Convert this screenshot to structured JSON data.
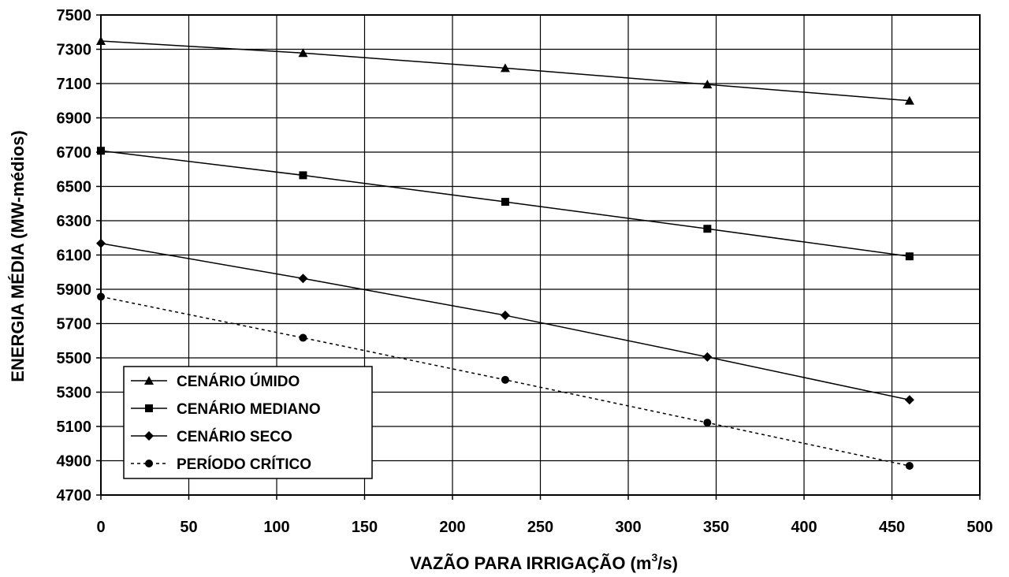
{
  "chart_data": {
    "type": "line",
    "xlabel": "VAZÃO PARA IRRIGAÇÃO (m",
    "xlabel_sup": "3",
    "xlabel_suffix": "/s)",
    "ylabel": "ENERGIA MÉDIA (MW-médios)",
    "xlim": [
      0,
      500
    ],
    "ylim": [
      4700,
      7500
    ],
    "x_ticks": [
      0,
      50,
      100,
      150,
      200,
      250,
      300,
      350,
      400,
      450,
      500
    ],
    "y_ticks": [
      4700,
      4900,
      5100,
      5300,
      5500,
      5700,
      5900,
      6100,
      6300,
      6500,
      6700,
      6900,
      7100,
      7300,
      7500
    ],
    "grid": true,
    "legend_position": "bottom-left",
    "series": [
      {
        "name": "CENÁRIO ÚMIDO",
        "marker": "triangle",
        "dash": "solid",
        "x": [
          0,
          115,
          230,
          345,
          460
        ],
        "y": [
          7348,
          7278,
          7190,
          7095,
          7000
        ]
      },
      {
        "name": "CENÁRIO MEDIANO",
        "marker": "square",
        "dash": "solid",
        "x": [
          0,
          115,
          230,
          345,
          460
        ],
        "y": [
          6708,
          6565,
          6410,
          6253,
          6092
        ]
      },
      {
        "name": "CENÁRIO SECO",
        "marker": "diamond",
        "dash": "solid",
        "x": [
          0,
          115,
          230,
          345,
          460
        ],
        "y": [
          6168,
          5963,
          5748,
          5505,
          5255
        ]
      },
      {
        "name": "PERÍODO CRÍTICO",
        "marker": "circle",
        "dash": "dotted",
        "x": [
          0,
          115,
          230,
          345,
          460
        ],
        "y": [
          5857,
          5617,
          5372,
          5122,
          4870
        ]
      }
    ]
  }
}
